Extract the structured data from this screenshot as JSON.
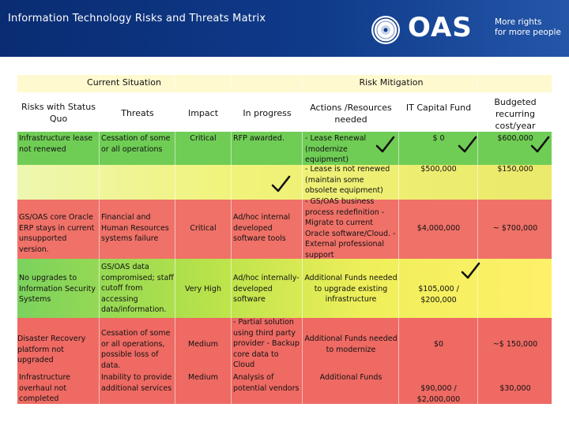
{
  "header": {
    "title": "Information Technology Risks and Threats Matrix",
    "brand": "OAS",
    "tagline_line1": "More rights",
    "tagline_line2": "for more people"
  },
  "sections": {
    "current": "Current Situation",
    "mitigation": "Risk Mitigation"
  },
  "columns": {
    "risks": "Risks with Status Quo",
    "threats": "Threats",
    "impact": "Impact",
    "in_progress": "In progress",
    "actions": "Actions /Resources needed",
    "capital": "IT Capital Fund",
    "budgeted": "Budgeted recurring cost/year"
  },
  "rows": [
    {
      "risk": "Infrastructure lease not renewed",
      "threat": "Cessation of some or all operations",
      "impact": "Critical",
      "in_progress": "RFP awarded.",
      "actions": "- Lease Renewal (modernize equipment)",
      "capital": "$ 0",
      "budget": "$600,000"
    },
    {
      "actions": "- Lease is not renewed (maintain some obsolete equipment)",
      "capital": "$500,000",
      "budget": "$150,000"
    },
    {
      "risk": "GS/OAS core Oracle ERP stays in current unsupported version.",
      "threat": "Financial and Human Resources systems failure",
      "impact": "Critical",
      "in_progress": "Ad/hoc internal developed software tools",
      "actions": "- GS/OAS business process redefinition - Migrate to current Oracle software/Cloud. - External professional support",
      "capital": "$4,000,000",
      "budget": "~ $700,000"
    },
    {
      "risk": "No upgrades to Information Security Systems",
      "threat": "GS/OAS data compromised; staff cutoff from accessing data/information.",
      "impact": "Very High",
      "in_progress": "Ad/hoc internally-developed software",
      "actions": "Additional Funds needed to upgrade existing infrastructure",
      "capital": "$105,000 / $200,000",
      "budget": ""
    },
    {
      "risk": "Disaster Recovery platform not upgraded",
      "threat": "Cessation of some or all operations, possible loss of data.",
      "impact": "Medium",
      "in_progress": "- Partial solution using third party provider - Backup core data to Cloud",
      "actions": "Additional Funds needed to modernize",
      "capital": "$0",
      "budget": "~$ 150,000"
    },
    {
      "risk": "Infrastructure overhaul not completed",
      "threat": "Inability to provide additional services",
      "impact": "Medium",
      "in_progress": "Analysis of potential vendors",
      "actions": "Additional Funds",
      "capital": "$90,000 / $2,000,000",
      "budget": "$30,000"
    }
  ],
  "colors": {
    "header_blue": "#0f3a8a",
    "critical_red": "#ee6a63",
    "ok_green": "#6fcd55",
    "caution_yellow": "#f0f37a"
  },
  "icons": {
    "check": "checkmark-icon",
    "logo": "oas-seal-icon"
  }
}
